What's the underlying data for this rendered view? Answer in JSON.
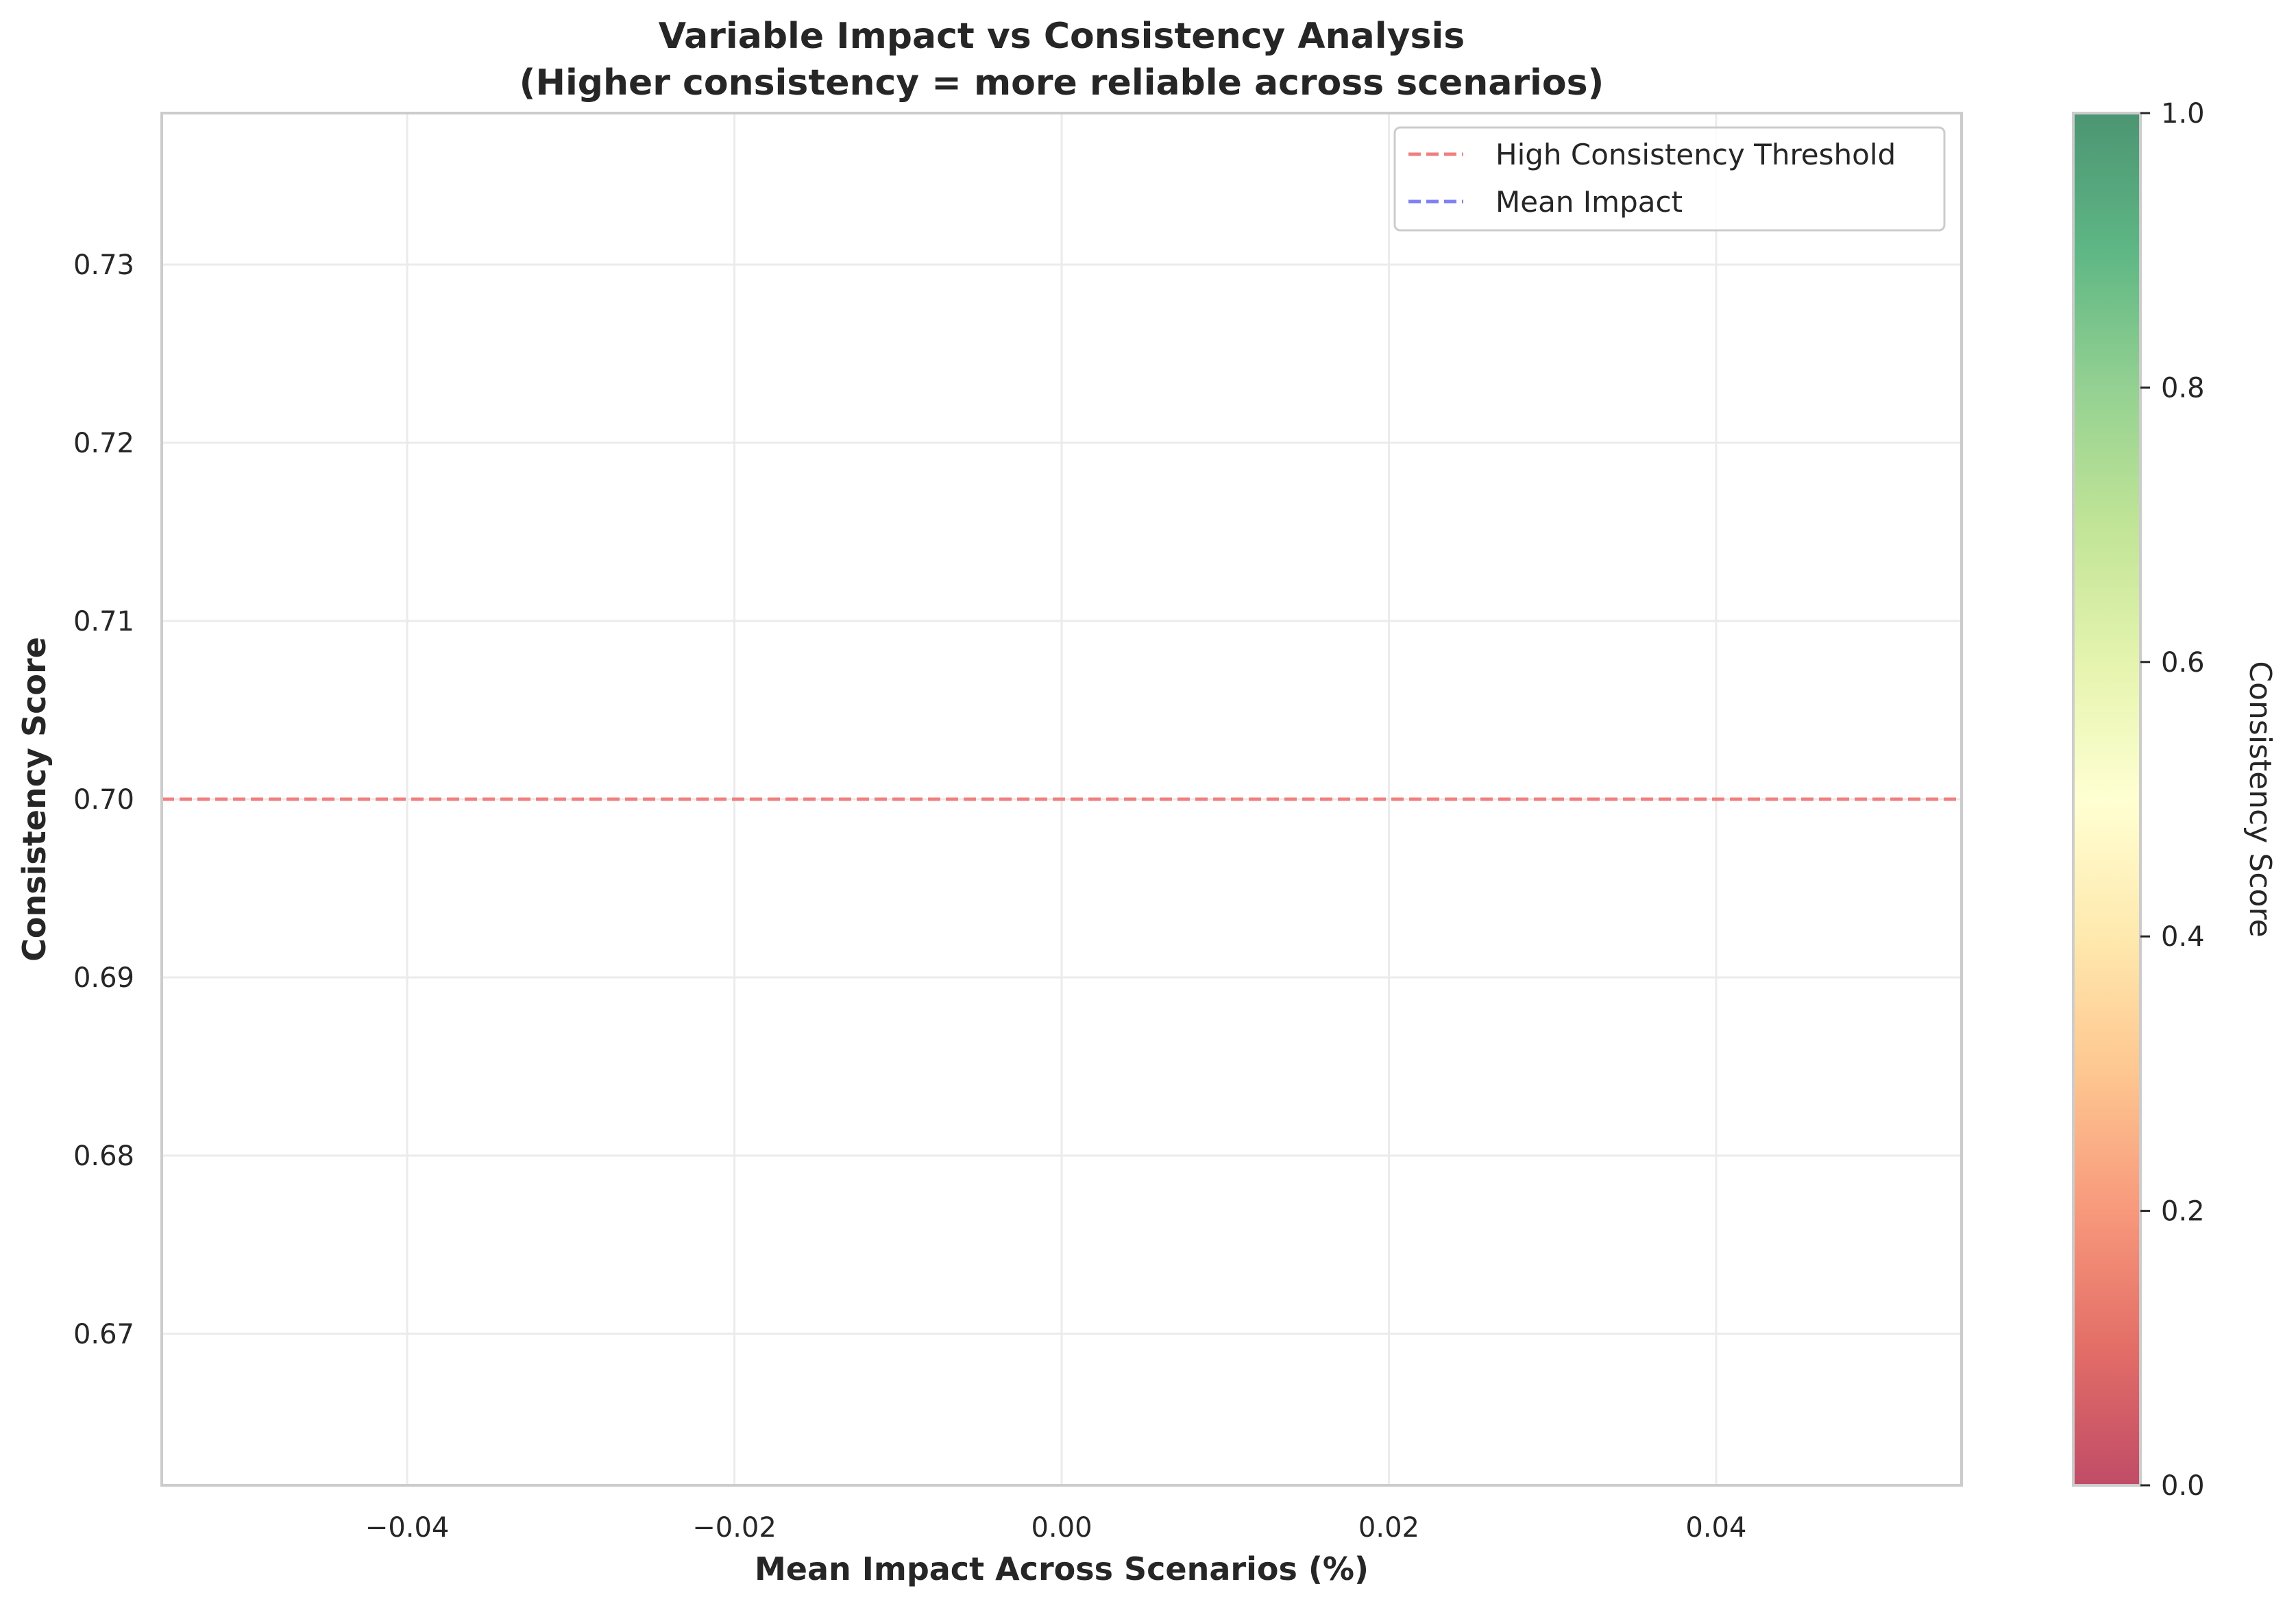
{
  "chart_data": {
    "type": "scatter",
    "title_line1": "Variable Impact vs Consistency Analysis",
    "title_line2": "(Higher consistency = more reliable across scenarios)",
    "xlabel": "Mean Impact Across Scenarios (%)",
    "ylabel": "Consistency Score",
    "xlim": [
      -0.055,
      0.055
    ],
    "ylim": [
      0.6615,
      0.7385
    ],
    "x_ticks": [
      -0.04,
      -0.02,
      0.0,
      0.02,
      0.04
    ],
    "x_tick_labels": [
      "−0.04",
      "−0.02",
      "0.00",
      "0.02",
      "0.04"
    ],
    "y_ticks": [
      0.67,
      0.68,
      0.69,
      0.7,
      0.71,
      0.72,
      0.73
    ],
    "y_tick_labels": [
      "0.67",
      "0.68",
      "0.69",
      "0.70",
      "0.71",
      "0.72",
      "0.73"
    ],
    "grid": true,
    "points": [],
    "reference_lines": [
      {
        "name": "High Consistency Threshold",
        "orientation": "horizontal",
        "value": 0.7,
        "color": "#f08080",
        "style": "dashed"
      },
      {
        "name": "Mean Impact",
        "orientation": "vertical",
        "value": null,
        "color": "#8080f0",
        "style": "dashed"
      }
    ],
    "legend": {
      "position": "top-right",
      "entries": [
        {
          "label": "High Consistency Threshold",
          "color": "#f08080"
        },
        {
          "label": "Mean Impact",
          "color": "#8080f0"
        }
      ]
    },
    "colorbar": {
      "label": "Consistency Score",
      "range": [
        0.0,
        1.0
      ],
      "ticks": [
        0.0,
        0.2,
        0.4,
        0.6,
        0.8,
        1.0
      ],
      "tick_labels": [
        "0.0",
        "0.2",
        "0.4",
        "0.6",
        "0.8",
        "1.0"
      ],
      "colormap": "RdYlGn",
      "alpha": 0.7
    }
  }
}
